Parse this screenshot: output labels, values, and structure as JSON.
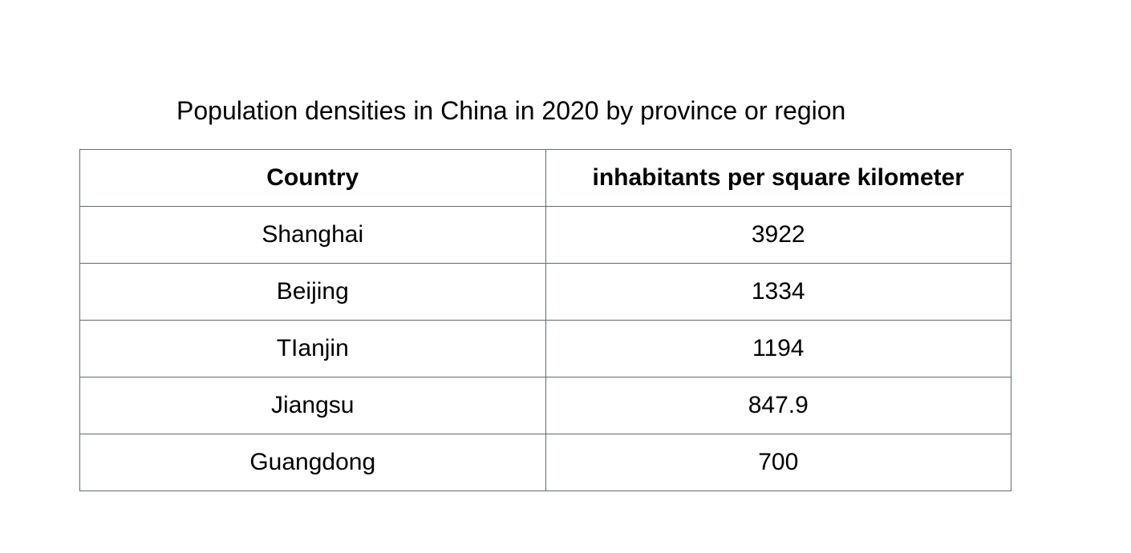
{
  "chart_data": {
    "type": "table",
    "title": "Population densities in China in 2020 by province or region",
    "columns": [
      "Country",
      "inhabitants per square kilometer"
    ],
    "rows": [
      [
        "Shanghai",
        "3922"
      ],
      [
        "Beijing",
        "1334"
      ],
      [
        "TIanjin",
        "1194"
      ],
      [
        "Jiangsu",
        "847.9"
      ],
      [
        "Guangdong",
        "700"
      ]
    ]
  }
}
